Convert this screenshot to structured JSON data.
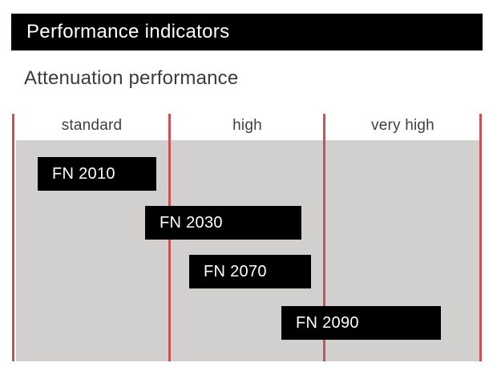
{
  "header": {
    "title": "Performance indicators"
  },
  "subtitle": "Attenuation performance",
  "colors": {
    "header_bg": "#000000",
    "header_text": "#ffffff",
    "subtitle_text": "#3b3b3b",
    "column_header_text": "#404040",
    "category_divider_red": "#ca5156",
    "plot_background_gray": "#d1d0ce",
    "bar_fill": "#000000",
    "bar_text": "#ffffff",
    "page_background": "#ffffff"
  },
  "chart_data": {
    "type": "range-bar",
    "title": "Attenuation performance",
    "categories": [
      "standard",
      "high",
      "very high"
    ],
    "series": [
      {
        "name": "FN 2010",
        "start": 0.16,
        "end": 0.92,
        "range_label": "standard"
      },
      {
        "name": "FN 2030",
        "start": 0.85,
        "end": 1.85,
        "range_label": "standard to high"
      },
      {
        "name": "FN 2070",
        "start": 1.13,
        "end": 1.91,
        "range_label": "high"
      },
      {
        "name": "FN 2090",
        "start": 1.72,
        "end": 2.74,
        "range_label": "high to very high"
      }
    ],
    "xlim": [
      0,
      3
    ],
    "x_units": "category index (0 = left edge of standard, 3 = right edge of very high)",
    "grid": "vertical red category divider lines",
    "legend": "none"
  }
}
